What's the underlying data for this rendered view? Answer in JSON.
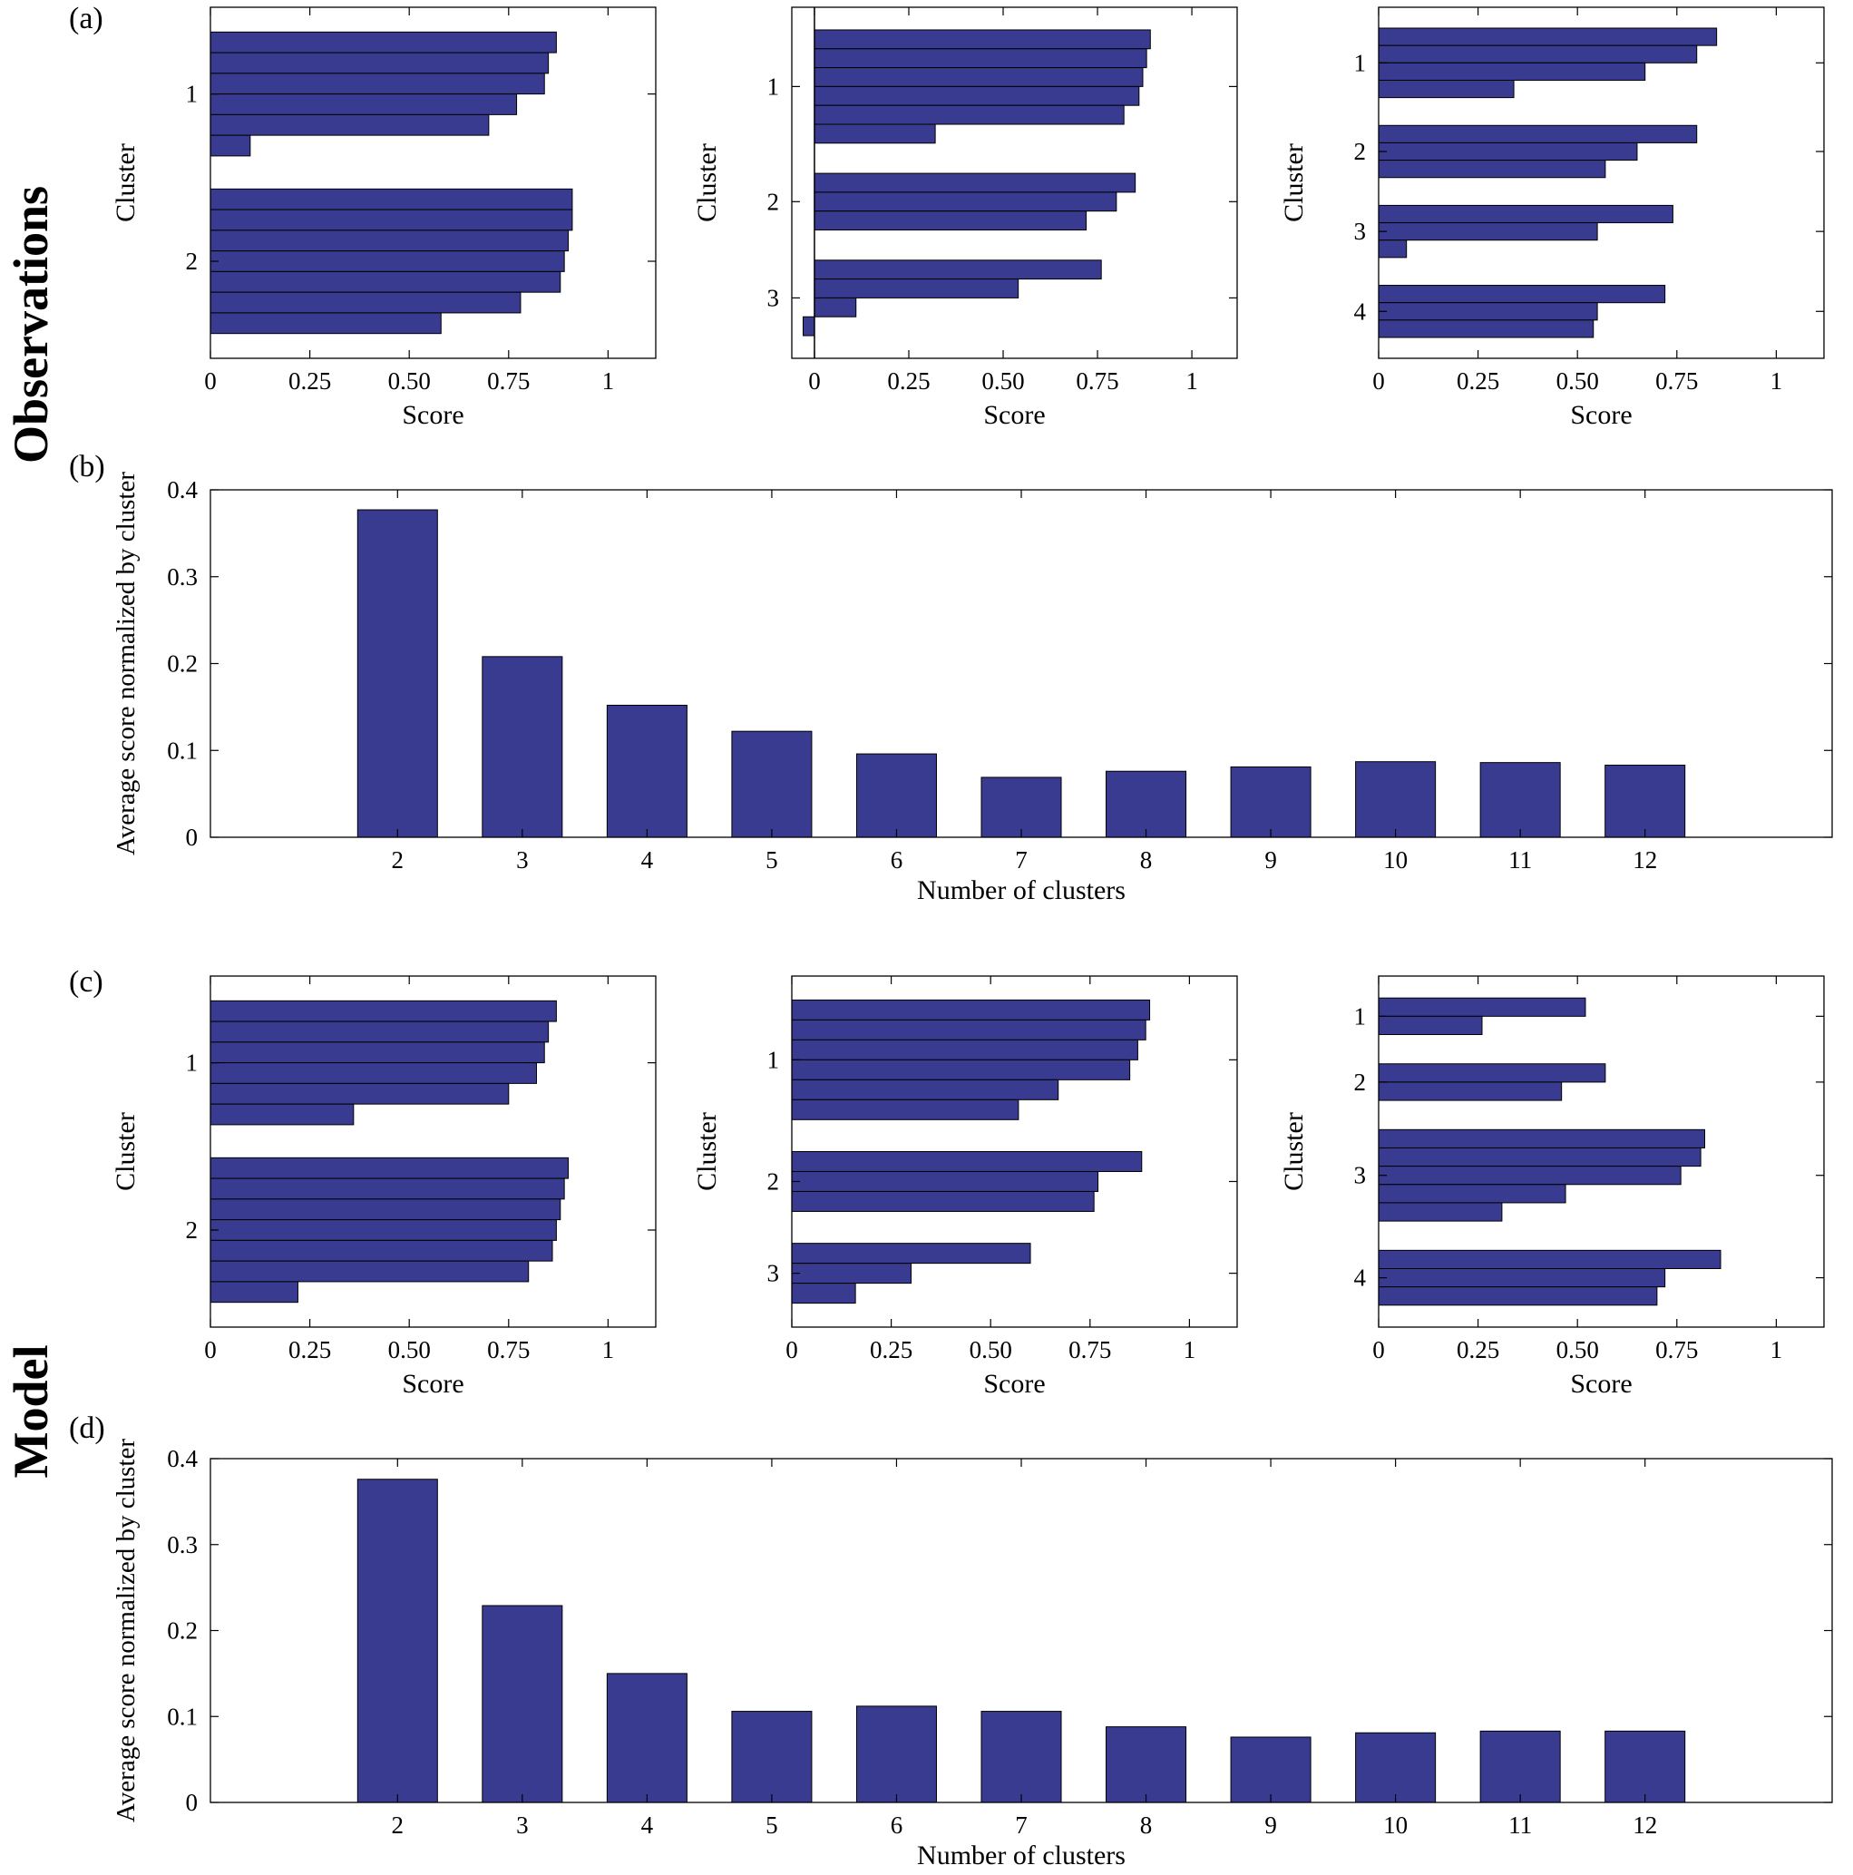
{
  "figure": {
    "panel_labels": [
      "(a)",
      "(b)",
      "(c)",
      "(d)"
    ],
    "row_labels": [
      "Observations",
      "Model"
    ]
  },
  "colors": {
    "bar_fill": "#383b90",
    "bar_edge": "#000000",
    "axis": "#000000",
    "background": "#ffffff"
  },
  "chart_data": [
    {
      "id": "obs_sil_2",
      "type": "bar",
      "orientation": "horizontal",
      "title": "Silhouette scores, observations, 2 clusters",
      "xlabel": "Score",
      "ylabel": "Cluster",
      "xlim": [
        0,
        1.12
      ],
      "xticks": [
        0,
        0.25,
        0.5,
        0.75,
        1
      ],
      "xtick_labels": [
        "0",
        "0.25",
        "0.50",
        "0.75",
        "1"
      ],
      "zero_line": false,
      "clusters": [
        {
          "label": "1",
          "values": [
            0.87,
            0.85,
            0.84,
            0.77,
            0.7,
            0.1
          ]
        },
        {
          "label": "2",
          "values": [
            0.91,
            0.91,
            0.9,
            0.89,
            0.88,
            0.78,
            0.58
          ]
        }
      ]
    },
    {
      "id": "obs_sil_3",
      "type": "bar",
      "orientation": "horizontal",
      "title": "Silhouette scores, observations, 3 clusters",
      "xlabel": "Score",
      "ylabel": "Cluster",
      "xlim": [
        -0.06,
        1.12
      ],
      "xticks": [
        0,
        0.25,
        0.5,
        0.75,
        1
      ],
      "xtick_labels": [
        "0",
        "0.25",
        "0.50",
        "0.75",
        "1"
      ],
      "zero_line": true,
      "clusters": [
        {
          "label": "1",
          "values": [
            0.89,
            0.88,
            0.87,
            0.86,
            0.82,
            0.32
          ]
        },
        {
          "label": "2",
          "values": [
            0.85,
            0.8,
            0.72
          ]
        },
        {
          "label": "3",
          "values": [
            0.76,
            0.54,
            0.11,
            -0.03
          ]
        }
      ]
    },
    {
      "id": "obs_sil_4",
      "type": "bar",
      "orientation": "horizontal",
      "title": "Silhouette scores, observations, 4 clusters",
      "xlabel": "Score",
      "ylabel": "Cluster",
      "xlim": [
        0,
        1.12
      ],
      "xticks": [
        0,
        0.25,
        0.5,
        0.75,
        1
      ],
      "xtick_labels": [
        "0",
        "0.25",
        "0.50",
        "0.75",
        "1"
      ],
      "zero_line": false,
      "clusters": [
        {
          "label": "1",
          "values": [
            0.85,
            0.8,
            0.67,
            0.34
          ]
        },
        {
          "label": "2",
          "values": [
            0.8,
            0.65,
            0.57
          ]
        },
        {
          "label": "3",
          "values": [
            0.74,
            0.55,
            0.07
          ]
        },
        {
          "label": "4",
          "values": [
            0.72,
            0.55,
            0.54
          ]
        }
      ]
    },
    {
      "id": "obs_avg",
      "type": "bar",
      "orientation": "vertical",
      "title": "Average silhouette score vs number of clusters, observations",
      "xlabel": "Number of  clusters",
      "ylabel": "Average score normalized by cluster",
      "xlim": [
        0.5,
        13.5
      ],
      "ylim": [
        0,
        0.4
      ],
      "yticks": [
        0,
        0.1,
        0.2,
        0.3,
        0.4
      ],
      "ytick_labels": [
        "0",
        "0.1",
        "0.2",
        "0.3",
        "0.4"
      ],
      "bar_width": 0.64,
      "categories": [
        2,
        3,
        4,
        5,
        6,
        7,
        8,
        9,
        10,
        11,
        12
      ],
      "values": [
        0.377,
        0.208,
        0.152,
        0.122,
        0.096,
        0.069,
        0.076,
        0.081,
        0.087,
        0.086,
        0.083
      ]
    },
    {
      "id": "model_sil_2",
      "type": "bar",
      "orientation": "horizontal",
      "title": "Silhouette scores, model, 2 clusters",
      "xlabel": "Score",
      "ylabel": "Cluster",
      "xlim": [
        0,
        1.12
      ],
      "xticks": [
        0,
        0.25,
        0.5,
        0.75,
        1
      ],
      "xtick_labels": [
        "0",
        "0.25",
        "0.50",
        "0.75",
        "1"
      ],
      "zero_line": false,
      "clusters": [
        {
          "label": "1",
          "values": [
            0.87,
            0.85,
            0.84,
            0.82,
            0.75,
            0.36
          ]
        },
        {
          "label": "2",
          "values": [
            0.9,
            0.89,
            0.88,
            0.87,
            0.86,
            0.8,
            0.22
          ]
        }
      ]
    },
    {
      "id": "model_sil_3",
      "type": "bar",
      "orientation": "horizontal",
      "title": "Silhouette scores, model, 3 clusters",
      "xlabel": "Score",
      "ylabel": "Cluster",
      "xlim": [
        0,
        1.12
      ],
      "xticks": [
        0,
        0.25,
        0.5,
        0.75,
        1
      ],
      "xtick_labels": [
        "0",
        "0.25",
        "0.50",
        "0.75",
        "1"
      ],
      "zero_line": false,
      "clusters": [
        {
          "label": "1",
          "values": [
            0.9,
            0.89,
            0.87,
            0.85,
            0.67,
            0.57
          ]
        },
        {
          "label": "2",
          "values": [
            0.88,
            0.77,
            0.76
          ]
        },
        {
          "label": "3",
          "values": [
            0.6,
            0.3,
            0.16
          ]
        }
      ]
    },
    {
      "id": "model_sil_4",
      "type": "bar",
      "orientation": "horizontal",
      "title": "Silhouette scores, model, 4 clusters",
      "xlabel": "Score",
      "ylabel": "Cluster",
      "xlim": [
        0,
        1.12
      ],
      "xticks": [
        0,
        0.25,
        0.5,
        0.75,
        1
      ],
      "xtick_labels": [
        "0",
        "0.25",
        "0.50",
        "0.75",
        "1"
      ],
      "zero_line": false,
      "clusters": [
        {
          "label": "1",
          "values": [
            0.52,
            0.26
          ]
        },
        {
          "label": "2",
          "values": [
            0.57,
            0.46
          ]
        },
        {
          "label": "3",
          "values": [
            0.82,
            0.81,
            0.76,
            0.47,
            0.31
          ]
        },
        {
          "label": "4",
          "values": [
            0.86,
            0.72,
            0.7
          ]
        }
      ]
    },
    {
      "id": "model_avg",
      "type": "bar",
      "orientation": "vertical",
      "title": "Average silhouette score vs number of clusters, model",
      "xlabel": "Number of  clusters",
      "ylabel": "Average score normalized by cluster",
      "xlim": [
        0.5,
        13.5
      ],
      "ylim": [
        0,
        0.4
      ],
      "yticks": [
        0,
        0.1,
        0.2,
        0.3,
        0.4
      ],
      "ytick_labels": [
        "0",
        "0.1",
        "0.2",
        "0.3",
        "0.4"
      ],
      "bar_width": 0.64,
      "categories": [
        2,
        3,
        4,
        5,
        6,
        7,
        8,
        9,
        10,
        11,
        12
      ],
      "values": [
        0.376,
        0.229,
        0.15,
        0.106,
        0.112,
        0.106,
        0.088,
        0.076,
        0.081,
        0.083,
        0.083
      ]
    }
  ]
}
